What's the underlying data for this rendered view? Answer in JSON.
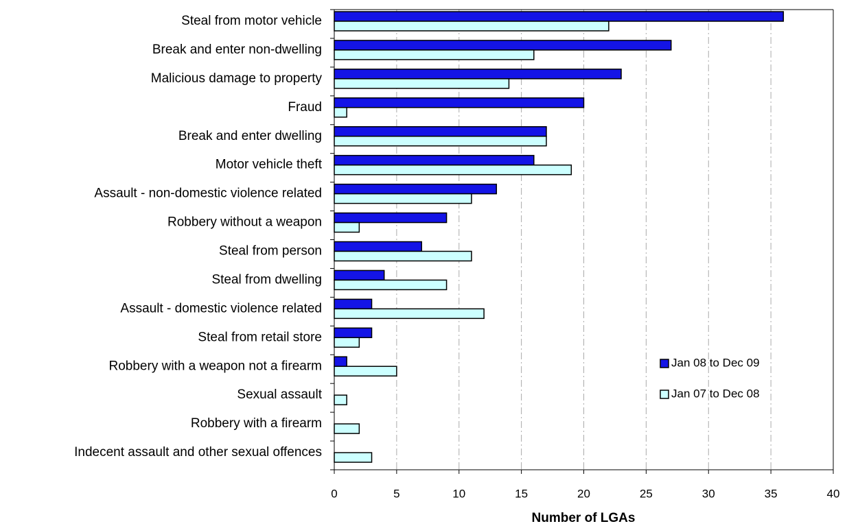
{
  "chart_data": {
    "type": "hbar",
    "xlabel": "Number of LGAs",
    "categories": [
      "Steal from motor vehicle",
      "Break and enter non-dwelling",
      "Malicious damage to property",
      "Fraud",
      "Break and enter dwelling",
      "Motor vehicle theft",
      "Assault - non-domestic violence related",
      "Robbery without a weapon",
      "Steal from person",
      "Steal from dwelling",
      "Assault - domestic violence related",
      "Steal from retail store",
      "Robbery with a weapon not a firearm",
      "Sexual assault",
      "Robbery with a firearm",
      "Indecent assault and other sexual offences"
    ],
    "series": [
      {
        "name": "Jan 08 to Dec 09",
        "color": "#1414e6",
        "values": [
          36,
          27,
          23,
          20,
          17,
          16,
          13,
          9,
          7,
          4,
          3,
          3,
          1,
          0,
          0,
          0
        ]
      },
      {
        "name": "Jan 07 to Dec 08",
        "color": "#ccffff",
        "values": [
          22,
          16,
          14,
          1,
          17,
          19,
          11,
          2,
          11,
          9,
          12,
          2,
          5,
          1,
          2,
          3
        ]
      }
    ],
    "xlim": [
      0,
      40
    ],
    "xticks": [
      0,
      5,
      10,
      15,
      20,
      25,
      30,
      35,
      40
    ],
    "grid": true,
    "legend": "right"
  }
}
